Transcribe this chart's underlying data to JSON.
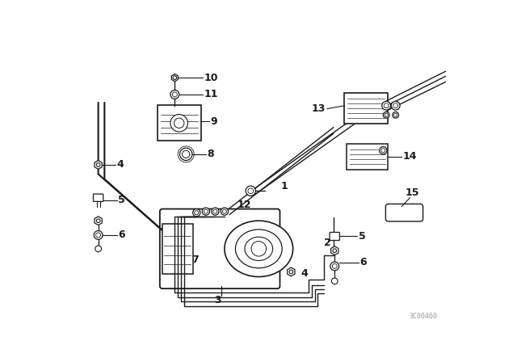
{
  "bg_color": "#ffffff",
  "line_color": "#1a1a1a",
  "watermark": "3C00460",
  "fig_width": 6.4,
  "fig_height": 4.48,
  "dpi": 100
}
